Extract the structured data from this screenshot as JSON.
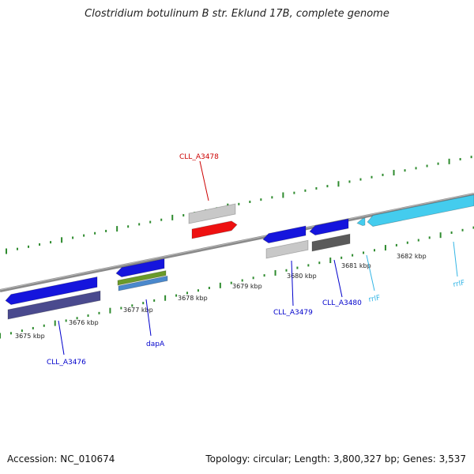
{
  "title": "Clostridium botulinum B str. Eklund 17B, complete genome",
  "footer": {
    "accession": "Accession: NC_010674",
    "topology": "Topology: circular; Length: 3,800,327 bp; Genes: 3,537"
  },
  "colors": {
    "backbone": "#8a8a8a",
    "tick": "#2e8b2e",
    "gene_label": "#0000cc",
    "highlight_label": "#cc0000",
    "rna_label": "#33b5e5",
    "blue": "#1515dd",
    "red": "#ee1111",
    "light_gray": "#c8c8c8",
    "dark_gray": "#5a5a5a",
    "slate": "#4a4a8e",
    "olive": "#6a9a2a",
    "steel": "#4a88cc",
    "cyan": "#44ccee"
  },
  "scale_labels": [
    "3675 kbp",
    "3676 kbp",
    "3677 kbp",
    "3678 kbp",
    "3679 kbp",
    "3680 kbp",
    "3681 kbp",
    "3682 kbp"
  ],
  "gene_labels": [
    "CLL_A3476",
    "dapA",
    "CLL_A3478",
    "CLL_A3479",
    "CLL_A3480",
    "rrlF",
    "rrlF"
  ]
}
